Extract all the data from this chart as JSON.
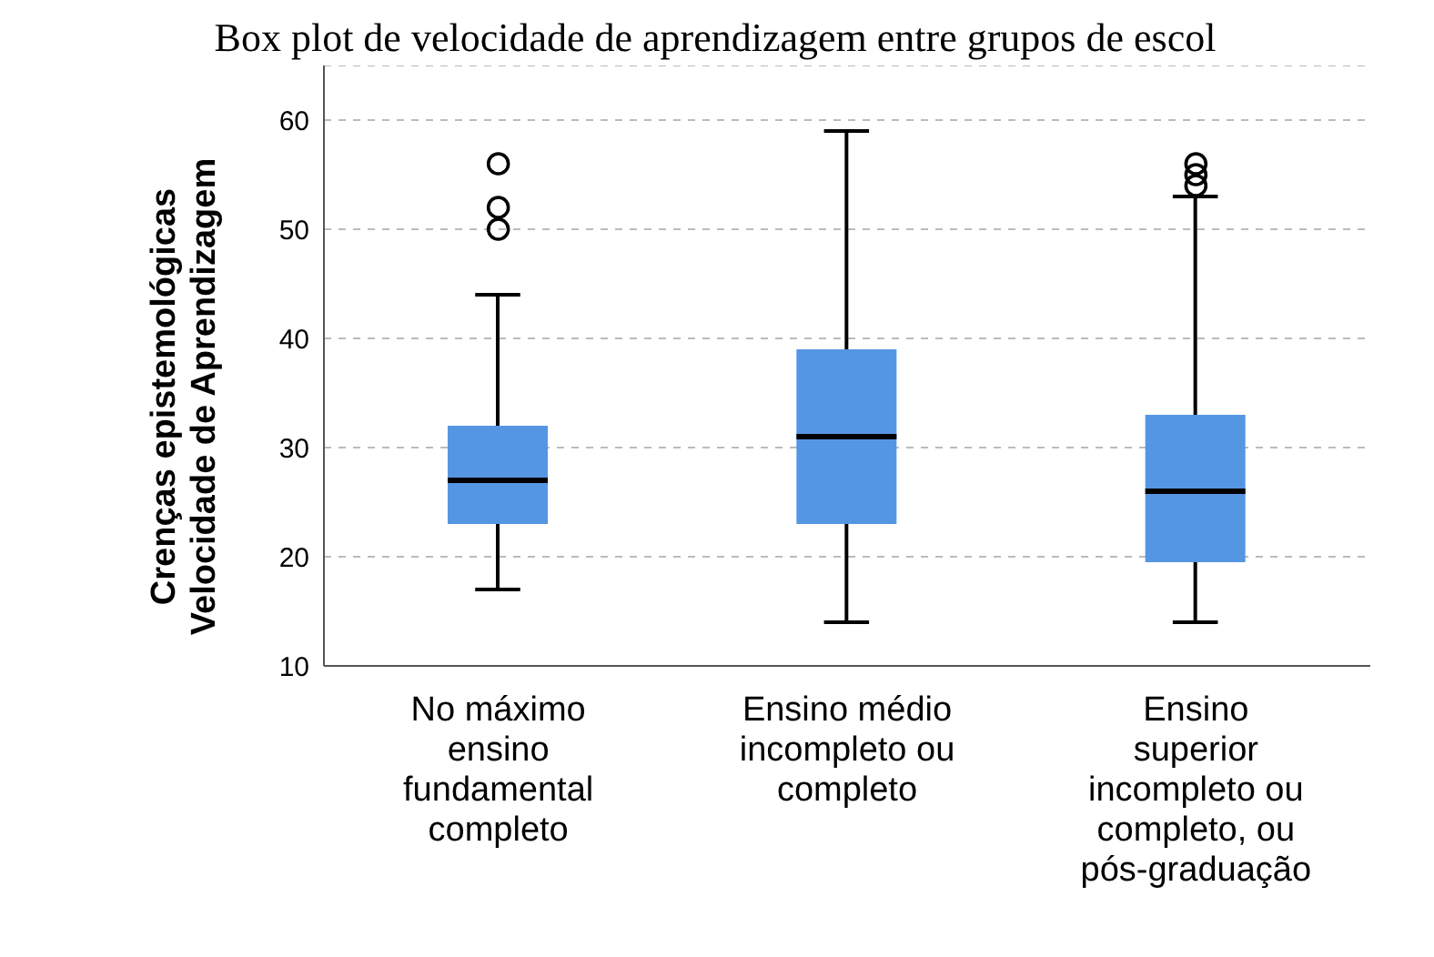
{
  "chart_data": {
    "type": "box",
    "title": "Box plot de velocidade de aprendizagem entre grupos de escol",
    "ylabel": "Crenças epistemológicas\nVelocidade de Aprendizagem",
    "categories": [
      "No máximo ensino fundamental completo",
      "Ensino médio incompleto ou completo",
      "Ensino superior incompleto ou completo, ou pós-graduação"
    ],
    "color": "#5596e3",
    "boxes": [
      {
        "low": 17,
        "q1": 23,
        "median": 27,
        "q3": 32,
        "high": 44,
        "outliers": [
          50,
          52,
          56
        ]
      },
      {
        "low": 14,
        "q1": 23,
        "median": 31,
        "q3": 39,
        "high": 59
      },
      {
        "low": 14,
        "q1": 19.5,
        "median": 26,
        "q3": 33,
        "high": 53,
        "outliers": [
          54,
          55,
          56
        ]
      }
    ],
    "ylim": [
      10,
      65
    ],
    "yticks": [
      10,
      20,
      30,
      40,
      50,
      60
    ],
    "grid": "y"
  }
}
